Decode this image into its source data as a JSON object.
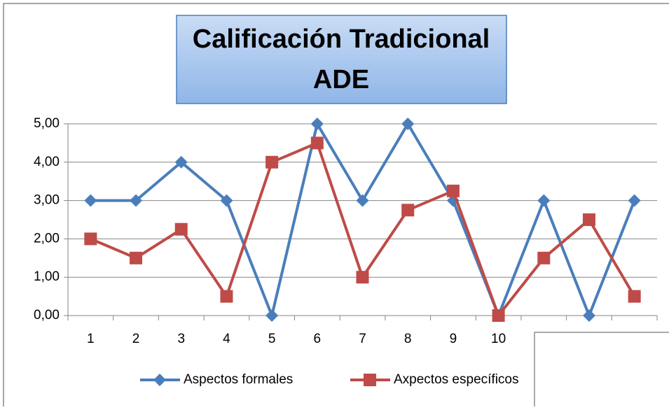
{
  "chart_data": {
    "type": "line",
    "title": [
      "Calificación Tradicional",
      "ADE"
    ],
    "categories": [
      "1",
      "2",
      "3",
      "4",
      "5",
      "6",
      "7",
      "8",
      "9",
      "10",
      null,
      null,
      null
    ],
    "series": [
      {
        "name": "Aspectos formales",
        "color": "#4a7ebb",
        "marker": "diamond",
        "values": [
          3,
          3,
          4,
          3,
          0,
          5,
          3,
          5,
          3,
          0,
          3,
          0,
          3
        ]
      },
      {
        "name": "Axpectos específicos",
        "color": "#be4b48",
        "marker": "square",
        "values": [
          2,
          1.5,
          2.25,
          0.5,
          4,
          4.5,
          1,
          2.75,
          3.25,
          0,
          1.5,
          2.5,
          0.5
        ]
      }
    ],
    "ylim": [
      0,
      5
    ],
    "yticks": [
      {
        "value": 0,
        "label": "0,00"
      },
      {
        "value": 1,
        "label": "1,00"
      },
      {
        "value": 2,
        "label": "2,00"
      },
      {
        "value": 3,
        "label": "3,00"
      },
      {
        "value": 4,
        "label": "4,00"
      },
      {
        "value": 5,
        "label": "5,00"
      }
    ],
    "grid": true,
    "legend": "bottom"
  }
}
